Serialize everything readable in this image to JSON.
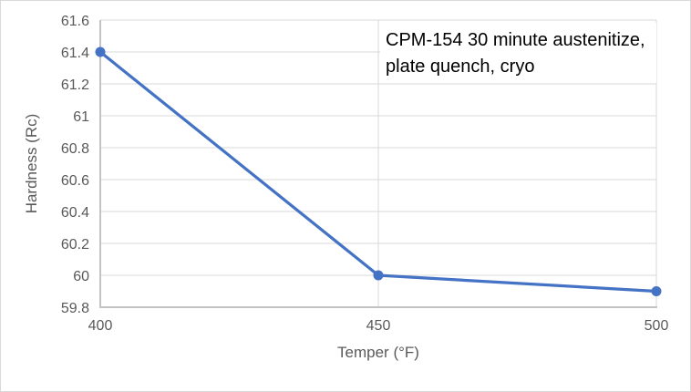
{
  "chart": {
    "background_color": "#FFFFFF",
    "frame_border_color": "#D9D9D9"
  },
  "chart_data": {
    "type": "line",
    "title": "",
    "x": [
      400,
      450,
      500
    ],
    "series": [
      {
        "name": "Hardness",
        "values": [
          61.4,
          60,
          59.9
        ]
      }
    ],
    "xlabel": "Temper (°F)",
    "ylabel": "Hardness (Rc)",
    "xticks": [
      400,
      450,
      500
    ],
    "xtick_labels": [
      "400",
      "450",
      "500"
    ],
    "ytick_labels": [
      "59.8",
      "60",
      "60.2",
      "60.4",
      "60.6",
      "60.8",
      "61",
      "61.2",
      "61.4",
      "61.6"
    ],
    "xlim": [
      400,
      500
    ],
    "ylim": [
      59.8,
      61.6
    ],
    "ytick_step": 0.2,
    "grid": true,
    "legend": "none",
    "annotation": "CPM-154 30 minute austenitize,\nplate quench, cryo",
    "colors": {
      "line": "#4472C4",
      "marker": "#4472C4",
      "gridline": "#D9D9D9",
      "axis_line": "#C3C3C3",
      "tick_label": "#595959",
      "axis_title": "#595959",
      "annotation_text": "#000000"
    }
  }
}
